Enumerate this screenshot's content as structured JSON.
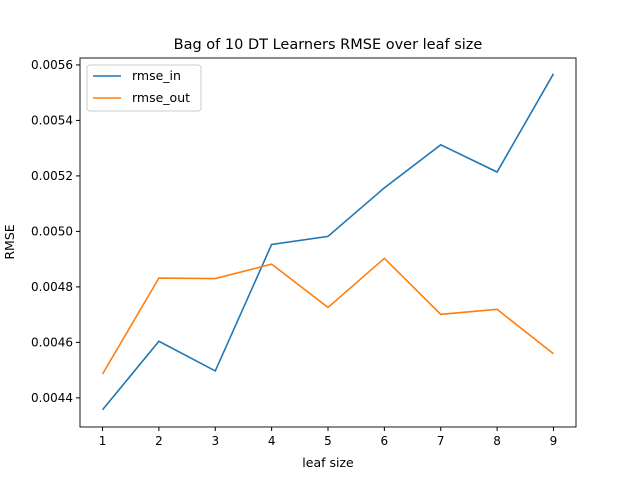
{
  "chart_data": {
    "type": "line",
    "title": "Bag of 10 DT Learners RMSE over leaf size",
    "xlabel": "leaf size",
    "ylabel": "RMSE",
    "x": [
      1,
      2,
      3,
      4,
      5,
      6,
      7,
      8,
      9
    ],
    "xlim": [
      0.6,
      9.4
    ],
    "ylim": [
      0.004295,
      0.005625
    ],
    "xticks": [
      "1",
      "2",
      "3",
      "4",
      "5",
      "6",
      "7",
      "8",
      "9"
    ],
    "yticks": [
      "0.0044",
      "0.0046",
      "0.0048",
      "0.0050",
      "0.0052",
      "0.0054",
      "0.0056"
    ],
    "grid": false,
    "legend_position": "top-left",
    "series": [
      {
        "name": "rmse_in",
        "color": "#1f77b4",
        "values": [
          0.004357,
          0.004604,
          0.004497,
          0.004953,
          0.004982,
          0.005157,
          0.005312,
          0.005214,
          0.005568
        ]
      },
      {
        "name": "rmse_out",
        "color": "#ff7f0e",
        "values": [
          0.004486,
          0.004832,
          0.00483,
          0.004882,
          0.004726,
          0.004903,
          0.004701,
          0.004719,
          0.004559
        ]
      }
    ]
  }
}
